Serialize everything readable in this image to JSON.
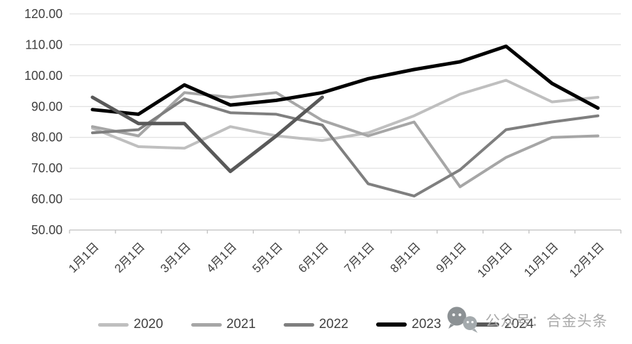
{
  "chart_data": {
    "type": "line",
    "title": "",
    "xlabel": "",
    "ylabel": "",
    "categories": [
      "1月1日",
      "2月1日",
      "3月1日",
      "4月1日",
      "5月1日",
      "6月1日",
      "7月1日",
      "8月1日",
      "9月1日",
      "10月1日",
      "11月1日",
      "12月1日"
    ],
    "series": [
      {
        "name": "2020",
        "color": "#bfbfbf",
        "stroke_width": 4,
        "values": [
          83,
          77,
          76.5,
          83.5,
          80.5,
          79,
          81.5,
          87,
          94,
          98.5,
          91.5,
          93
        ]
      },
      {
        "name": "2021",
        "color": "#a6a6a6",
        "stroke_width": 4,
        "values": [
          83.5,
          80.5,
          94.5,
          93,
          94.5,
          85.5,
          80.5,
          85,
          64,
          73.5,
          80,
          80.5
        ]
      },
      {
        "name": "2022",
        "color": "#7f7f7f",
        "stroke_width": 4,
        "values": [
          81.5,
          82.5,
          92.5,
          88,
          87.5,
          84,
          65,
          61,
          69.5,
          82.5,
          85,
          87
        ]
      },
      {
        "name": "2023",
        "color": "#000000",
        "stroke_width": 5,
        "values": [
          89,
          87.5,
          97,
          90.5,
          92,
          94.5,
          99,
          102,
          104.5,
          109.5,
          97.5,
          89.5
        ]
      },
      {
        "name": "2024",
        "color": "#595959",
        "stroke_width": 5,
        "values": [
          93,
          84.5,
          84.5,
          69,
          80.5,
          93,
          null,
          null,
          null,
          null,
          null,
          null
        ]
      }
    ],
    "y_axis": {
      "min": 50,
      "max": 120,
      "step": 10,
      "tick_labels": [
        "50.00",
        "60.00",
        "70.00",
        "80.00",
        "90.00",
        "100.00",
        "110.00",
        "120.00"
      ]
    },
    "x_axis": {
      "tick_labels": [
        "1月1日",
        "2月1日",
        "3月1日",
        "4月1日",
        "5月1日",
        "6月1日",
        "7月1日",
        "8月1日",
        "9月1日",
        "10月1日",
        "11月1日",
        "12月1日"
      ],
      "label_rotation_deg": -45
    },
    "grid": true,
    "gridline_color": "#d9d9d9",
    "axis_color": "#bfbfbf",
    "tick_label_color": "#404040",
    "legend_position": "bottom"
  },
  "legend": {
    "items": [
      "2020",
      "2021",
      "2022",
      "2023",
      "2024"
    ]
  },
  "watermark": {
    "icon": "wechat-chat-bubbles-icon",
    "text": "公众号：合金头条",
    "color": "#a9a9a9"
  }
}
